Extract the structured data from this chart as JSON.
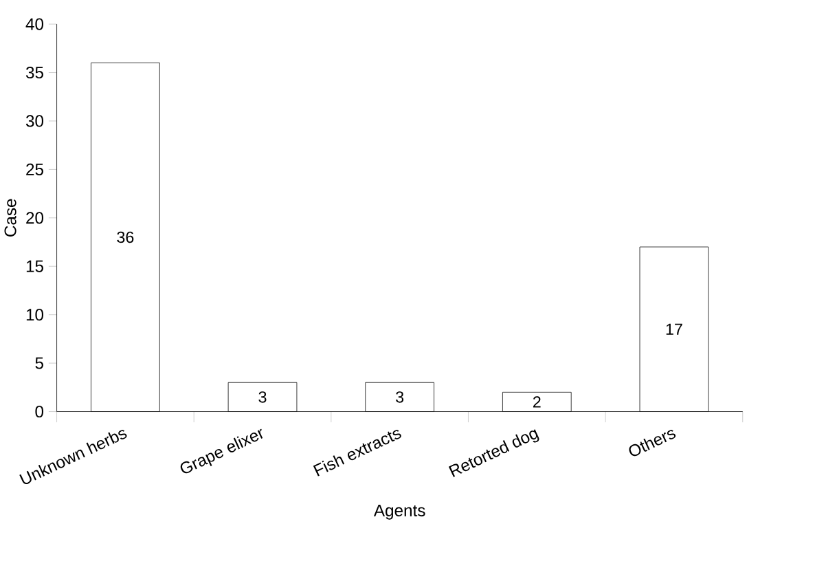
{
  "chart_data": {
    "type": "bar",
    "xlabel": "Agents",
    "ylabel": "Case",
    "categories": [
      "Unknown herbs",
      "Grape elixer",
      "Fish extracts",
      "Retorted dog",
      "Others"
    ],
    "values": [
      36,
      3,
      3,
      2,
      17
    ],
    "color": "#ffffff",
    "ylim": [
      0,
      40
    ],
    "yticks": [
      0,
      5,
      10,
      15,
      20,
      25,
      30,
      35,
      40
    ],
    "data_labels": true
  }
}
